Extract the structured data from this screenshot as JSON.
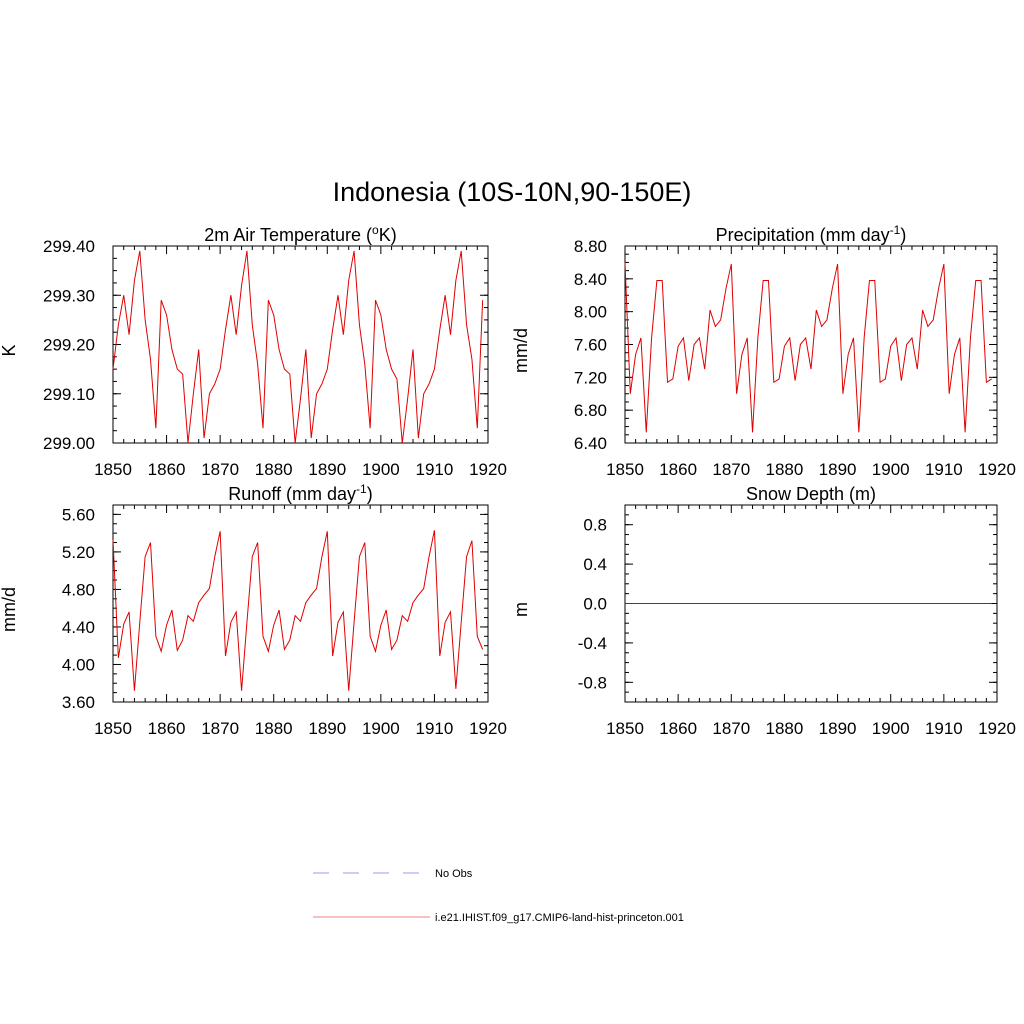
{
  "figure": {
    "title": "Indonesia (10S-10N,90-150E)"
  },
  "legend": {
    "items": [
      {
        "label": "No Obs",
        "color": "#9a9af0",
        "dash": true
      },
      {
        "label": "i.e21.IHIST.f09_g17.CMIP6-land-hist-princeton.001",
        "color": "#f08080",
        "dash": false
      }
    ]
  },
  "line_color": "#e00000",
  "chart_data": [
    {
      "type": "line",
      "title": "2m Air Temperature (",
      "title_sup": "o",
      "title_after": "K)",
      "ylabel": "K",
      "xlim": [
        1850,
        1920
      ],
      "ylim": [
        299.0,
        299.4
      ],
      "xticks": [
        1850,
        1860,
        1870,
        1880,
        1890,
        1900,
        1910,
        1920
      ],
      "yticks": [
        299.0,
        299.1,
        299.2,
        299.3,
        299.4
      ],
      "ytick_labels": [
        "299.00",
        "299.10",
        "299.20",
        "299.30",
        "299.40"
      ],
      "series": [
        {
          "x": [
            1850,
            1851,
            1852,
            1853,
            1854,
            1855,
            1856,
            1857,
            1858,
            1859,
            1860,
            1861,
            1862,
            1863,
            1864,
            1865,
            1866,
            1867,
            1868,
            1869,
            1870,
            1871,
            1872,
            1873,
            1874,
            1875,
            1876,
            1877,
            1878,
            1879,
            1880,
            1881,
            1882,
            1883,
            1884,
            1885,
            1886,
            1887,
            1888,
            1889,
            1890,
            1891,
            1892,
            1893,
            1894,
            1895,
            1896,
            1897,
            1898,
            1899,
            1900,
            1901,
            1902,
            1903,
            1904,
            1905,
            1906,
            1907,
            1908,
            1909,
            1910,
            1911,
            1912,
            1913,
            1914,
            1915,
            1916,
            1917,
            1918,
            1919
          ],
          "y": [
            299.15,
            299.24,
            299.3,
            299.22,
            299.33,
            299.39,
            299.25,
            299.17,
            299.03,
            299.29,
            299.26,
            299.19,
            299.15,
            299.14,
            299.0,
            299.1,
            299.19,
            299.01,
            299.1,
            299.12,
            299.15,
            299.23,
            299.3,
            299.22,
            299.32,
            299.39,
            299.24,
            299.16,
            299.03,
            299.29,
            299.26,
            299.19,
            299.15,
            299.14,
            299.0,
            299.09,
            299.19,
            299.01,
            299.1,
            299.12,
            299.15,
            299.23,
            299.3,
            299.22,
            299.33,
            299.39,
            299.24,
            299.16,
            299.03,
            299.29,
            299.26,
            299.19,
            299.15,
            299.13,
            299.0,
            299.09,
            299.19,
            299.01,
            299.1,
            299.12,
            299.15,
            299.23,
            299.3,
            299.22,
            299.33,
            299.39,
            299.24,
            299.17,
            299.03,
            299.29
          ]
        }
      ]
    },
    {
      "type": "line",
      "title": "Precipitation (mm day",
      "title_sup": "-1",
      "title_after": ")",
      "ylabel": "mm/d",
      "xlim": [
        1850,
        1920
      ],
      "ylim": [
        6.4,
        8.8
      ],
      "xticks": [
        1850,
        1860,
        1870,
        1880,
        1890,
        1900,
        1910,
        1920
      ],
      "yticks": [
        6.4,
        6.8,
        7.2,
        7.6,
        8.0,
        8.4,
        8.8
      ],
      "ytick_labels": [
        "6.40",
        "6.80",
        "7.20",
        "7.60",
        "8.00",
        "8.40",
        "8.80"
      ],
      "series": [
        {
          "x": [
            1850,
            1851,
            1852,
            1853,
            1854,
            1855,
            1856,
            1857,
            1858,
            1859,
            1860,
            1861,
            1862,
            1863,
            1864,
            1865,
            1866,
            1867,
            1868,
            1869,
            1870,
            1871,
            1872,
            1873,
            1874,
            1875,
            1876,
            1877,
            1878,
            1879,
            1880,
            1881,
            1882,
            1883,
            1884,
            1885,
            1886,
            1887,
            1888,
            1889,
            1890,
            1891,
            1892,
            1893,
            1894,
            1895,
            1896,
            1897,
            1898,
            1899,
            1900,
            1901,
            1902,
            1903,
            1904,
            1905,
            1906,
            1907,
            1908,
            1909,
            1910,
            1911,
            1912,
            1913,
            1914,
            1915,
            1916,
            1917,
            1918,
            1919
          ],
          "y": [
            8.6,
            7.0,
            7.48,
            7.68,
            6.53,
            7.68,
            8.38,
            8.38,
            7.14,
            7.18,
            7.58,
            7.68,
            7.16,
            7.6,
            7.68,
            7.3,
            8.02,
            7.82,
            7.9,
            8.28,
            8.58,
            7.0,
            7.48,
            7.68,
            6.53,
            7.68,
            8.38,
            8.38,
            7.14,
            7.18,
            7.58,
            7.68,
            7.16,
            7.6,
            7.68,
            7.3,
            8.02,
            7.82,
            7.9,
            8.28,
            8.58,
            7.0,
            7.48,
            7.68,
            6.53,
            7.68,
            8.38,
            8.38,
            7.14,
            7.18,
            7.58,
            7.68,
            7.16,
            7.6,
            7.68,
            7.3,
            8.02,
            7.82,
            7.9,
            8.28,
            8.58,
            7.0,
            7.48,
            7.68,
            6.53,
            7.68,
            8.38,
            8.38,
            7.14,
            7.18
          ]
        }
      ]
    },
    {
      "type": "line",
      "title": "Runoff (mm day",
      "title_sup": "-1",
      "title_after": ")",
      "ylabel": "mm/d",
      "xlim": [
        1850,
        1920
      ],
      "ylim": [
        3.6,
        5.7
      ],
      "xticks": [
        1850,
        1860,
        1870,
        1880,
        1890,
        1900,
        1910,
        1920
      ],
      "yticks": [
        3.6,
        4.0,
        4.4,
        4.8,
        5.2,
        5.6
      ],
      "ytick_labels": [
        "3.60",
        "4.00",
        "4.40",
        "4.80",
        "5.20",
        "5.60"
      ],
      "series": [
        {
          "x": [
            1850,
            1851,
            1852,
            1853,
            1854,
            1855,
            1856,
            1857,
            1858,
            1859,
            1860,
            1861,
            1862,
            1863,
            1864,
            1865,
            1866,
            1867,
            1868,
            1869,
            1870,
            1871,
            1872,
            1873,
            1874,
            1875,
            1876,
            1877,
            1878,
            1879,
            1880,
            1881,
            1882,
            1883,
            1884,
            1885,
            1886,
            1887,
            1888,
            1889,
            1890,
            1891,
            1892,
            1893,
            1894,
            1895,
            1896,
            1897,
            1898,
            1899,
            1900,
            1901,
            1902,
            1903,
            1904,
            1905,
            1906,
            1907,
            1908,
            1909,
            1910,
            1911,
            1912,
            1913,
            1914,
            1915,
            1916,
            1917,
            1918,
            1919
          ],
          "y": [
            5.33,
            4.07,
            4.43,
            4.56,
            3.72,
            4.45,
            5.15,
            5.3,
            4.3,
            4.14,
            4.42,
            4.58,
            4.15,
            4.26,
            4.52,
            4.46,
            4.66,
            4.74,
            4.81,
            5.15,
            5.42,
            4.09,
            4.45,
            4.56,
            3.72,
            4.45,
            5.15,
            5.3,
            4.3,
            4.14,
            4.42,
            4.58,
            4.16,
            4.26,
            4.52,
            4.46,
            4.66,
            4.74,
            4.81,
            5.15,
            5.42,
            4.09,
            4.45,
            4.56,
            3.72,
            4.45,
            5.15,
            5.3,
            4.3,
            4.14,
            4.42,
            4.58,
            4.16,
            4.26,
            4.52,
            4.46,
            4.66,
            4.74,
            4.81,
            5.15,
            5.43,
            4.09,
            4.45,
            4.56,
            3.74,
            4.45,
            5.15,
            5.32,
            4.3,
            4.16
          ]
        }
      ]
    },
    {
      "type": "line",
      "title": "Snow Depth (m)",
      "title_sup": "",
      "title_after": "",
      "ylabel": "m",
      "xlim": [
        1850,
        1920
      ],
      "ylim": [
        -1.0,
        1.0
      ],
      "xticks": [
        1850,
        1860,
        1870,
        1880,
        1890,
        1900,
        1910,
        1920
      ],
      "yticks": [
        -0.8,
        -0.4,
        0.0,
        0.4,
        0.8
      ],
      "ytick_labels": [
        "-0.8",
        "-0.4",
        "0.0",
        "0.4",
        "0.8"
      ],
      "series": [
        {
          "x": [
            1850,
            1919
          ],
          "y": [
            0,
            0
          ]
        }
      ]
    }
  ]
}
